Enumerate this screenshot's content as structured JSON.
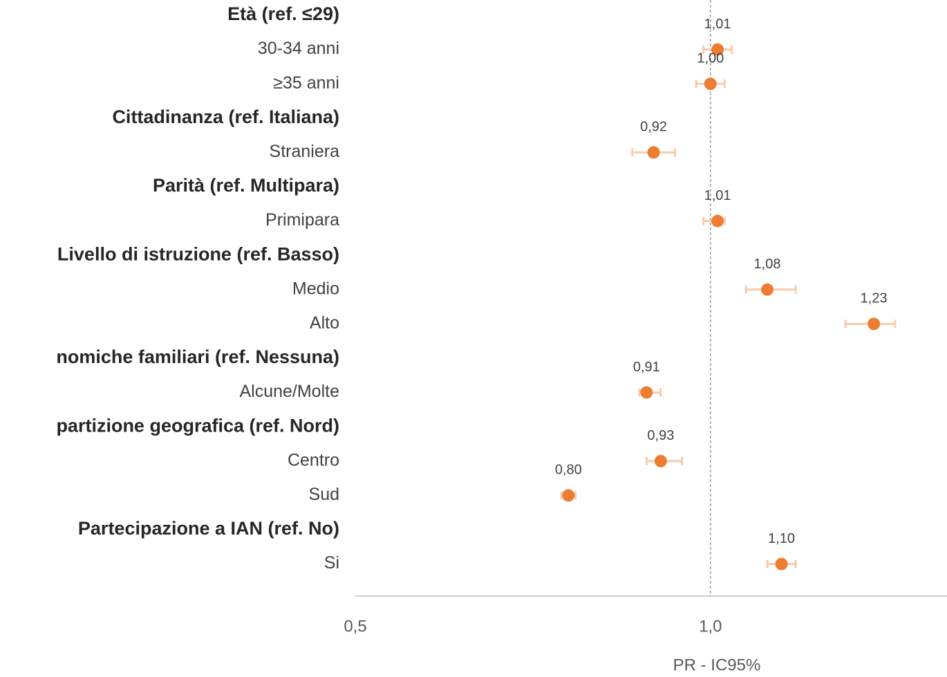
{
  "chart_data": {
    "type": "forest",
    "categories": [
      "Età (ref. ≤29)",
      "30-34 anni",
      "≥35 anni",
      "Cittadinanza (ref. Italiana)",
      "Straniera",
      "Parità (ref. Multipara)",
      "Primipara",
      "Livello di istruzione (ref. Basso)",
      "Medio",
      "Alto",
      "nomiche familiari (ref. Nessuna)",
      "Alcune/Molte",
      "partizione geografica (ref. Nord)",
      "Centro",
      "Sud",
      "Partecipazione a IAN (ref. No)",
      "Si"
    ],
    "values": [
      null,
      1.01,
      1.0,
      null,
      0.92,
      null,
      1.01,
      null,
      1.08,
      1.23,
      null,
      0.91,
      null,
      0.93,
      0.8,
      null,
      1.1
    ],
    "value_labels": [
      null,
      "1,01",
      "1,00",
      null,
      "0,92",
      null,
      "1,01",
      null,
      "1,08",
      "1,23",
      null,
      "0,91",
      null,
      "0,93",
      "0,80",
      null,
      "1,10"
    ],
    "ci_low": [
      null,
      0.99,
      0.98,
      null,
      0.89,
      null,
      0.99,
      null,
      1.05,
      1.19,
      null,
      0.9,
      null,
      0.91,
      0.79,
      null,
      1.08
    ],
    "ci_high": [
      null,
      1.03,
      1.02,
      null,
      0.95,
      null,
      1.02,
      null,
      1.12,
      1.26,
      null,
      0.93,
      null,
      0.96,
      0.81,
      null,
      1.12
    ],
    "color": "#ed7d31",
    "error_color": "#f8cbad",
    "xlim": [
      0.5,
      1.333
    ],
    "xticks": [
      {
        "value": 0.5,
        "label": "0,5"
      },
      {
        "value": 1,
        "label": "1,0"
      }
    ],
    "reference_line": 1,
    "xlabel": "PR - IC95%"
  }
}
